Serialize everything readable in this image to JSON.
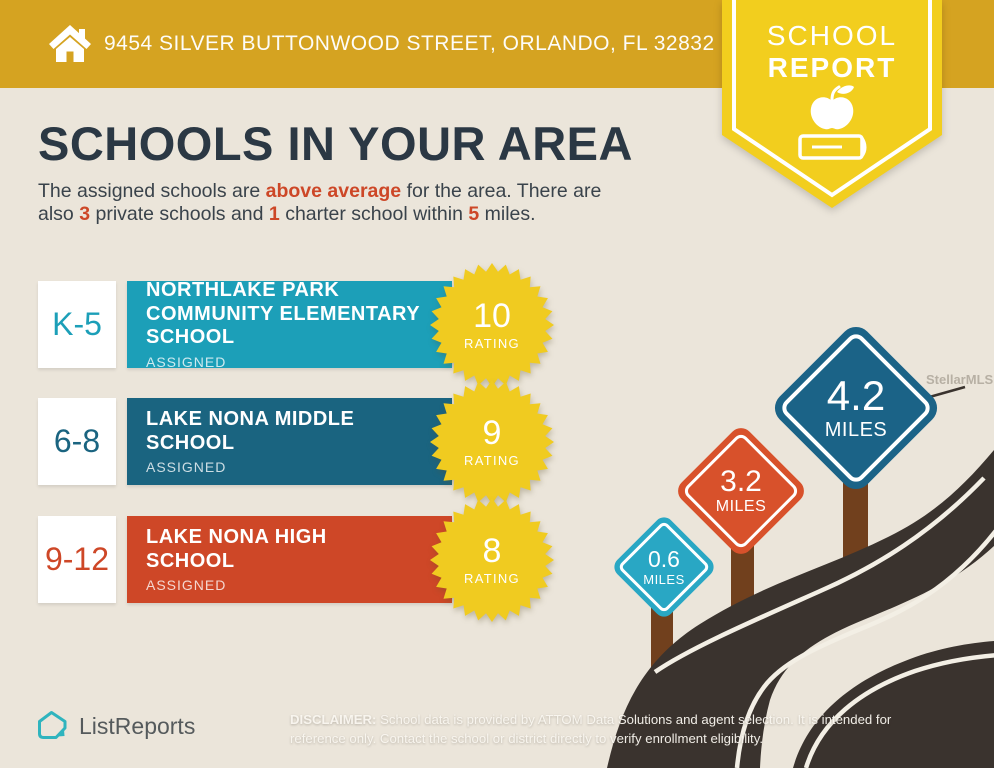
{
  "header": {
    "address": "9454 SILVER BUTTONWOOD STREET, ORLANDO, FL 32832"
  },
  "badge": {
    "line1": "SCHOOL",
    "line2": "REPORT"
  },
  "intro": {
    "title": "SCHOOLS IN YOUR AREA",
    "seg1": "The assigned schools are ",
    "accent1": "above average",
    "seg2": " for the area. There are also ",
    "accent2": "3",
    "seg3": " private schools and ",
    "accent3": "1",
    "seg4": " charter school within ",
    "accent4": "5",
    "seg5": " miles."
  },
  "schools": [
    {
      "grades": "K-5",
      "name": "NORTHLAKE PARK COMMUNITY ELEMENTARY SCHOOL",
      "status": "ASSIGNED",
      "rating": "10",
      "rating_label": "RATING",
      "color": "#1C9FB8"
    },
    {
      "grades": "6-8",
      "name": "LAKE NONA MIDDLE SCHOOL",
      "status": "ASSIGNED",
      "rating": "9",
      "rating_label": "RATING",
      "color": "#1A6480"
    },
    {
      "grades": "9-12",
      "name": "LAKE NONA HIGH SCHOOL",
      "status": "ASSIGNED",
      "rating": "8",
      "rating_label": "RATING",
      "color": "#CE4727"
    }
  ],
  "distance_signs": [
    {
      "distance": "0.6",
      "unit": "MILES",
      "color": "#29A7C4"
    },
    {
      "distance": "3.2",
      "unit": "MILES",
      "color": "#D8512B"
    },
    {
      "distance": "4.2",
      "unit": "MILES",
      "color": "#1B6387"
    }
  ],
  "footer": {
    "brand": "ListReports",
    "disclaimer_label": "DISCLAIMER:",
    "disclaimer_text": " School data is provided by ATTOM Data Solutions and agent selection. It is intended for reference only. Contact the school or district directly to verify enrollment eligibility."
  },
  "watermark": "StellarMLS",
  "colors": {
    "header_gold": "#D5A321",
    "badge_yellow": "#F2CE1E",
    "star_yellow": "#F0CB20",
    "background": "#EBE5DA",
    "road": "#3A332E",
    "post_brown": "#71401D",
    "accent_red": "#CD4727",
    "heading_navy": "#2B3844",
    "logo_teal": "#2FB4BE"
  }
}
